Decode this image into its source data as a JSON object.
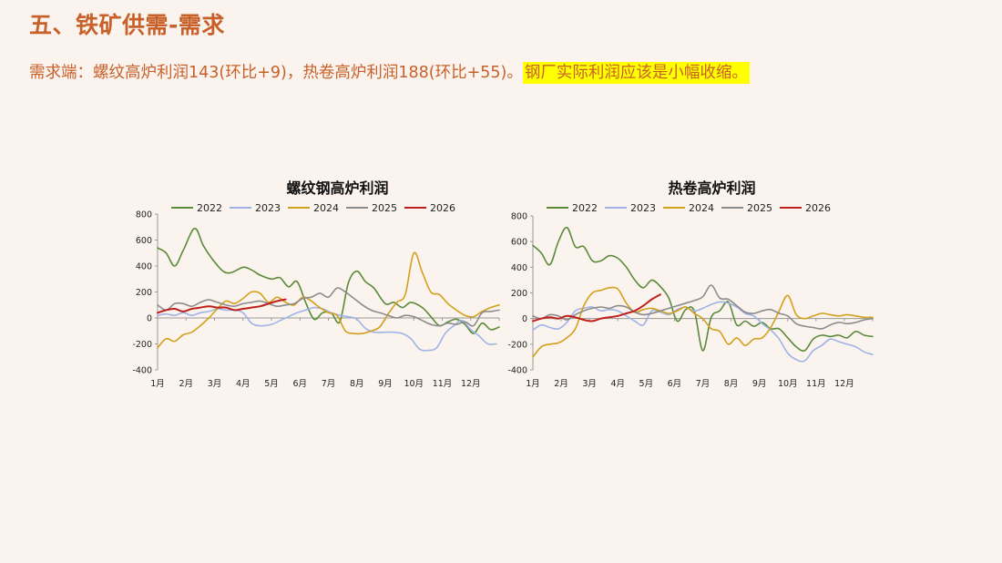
{
  "header": {
    "title": "五、铁矿供需-需求",
    "summary": "需求端：螺纹高炉利润143(环比+9)，热卷高炉利润188(环比+55)。",
    "highlight": "钢厂实际利润应该是小幅收缩。"
  },
  "colors": {
    "2022": "#5b8a3a",
    "2023": "#9fb3e6",
    "2024": "#d2a01c",
    "2025": "#8c8c8c",
    "2026": "#c0201c",
    "title_accent": "#c8602a",
    "highlight_bg": "#ffff00"
  },
  "chart_data": [
    {
      "type": "line",
      "title": "螺纹钢高炉利润",
      "x_tick_labels": [
        "1月",
        "2月",
        "3月",
        "4月",
        "5月",
        "6月",
        "7月",
        "8月",
        "9月",
        "10月",
        "11月",
        "12月"
      ],
      "xlim": [
        1,
        13
      ],
      "ylim": [
        -400,
        800
      ],
      "y_ticks": [
        -400,
        -200,
        0,
        200,
        400,
        600,
        800
      ],
      "grid": false,
      "legend_position": "top",
      "series": [
        {
          "name": "2022",
          "x": [
            1,
            1.3,
            1.6,
            1.9,
            2.3,
            2.6,
            2.9,
            3.3,
            3.6,
            4,
            4.3,
            4.6,
            5,
            5.3,
            5.6,
            5.9,
            6.2,
            6.5,
            6.8,
            7.1,
            7.4,
            7.7,
            8,
            8.3,
            8.6,
            9,
            9.3,
            9.6,
            9.9,
            10.3,
            10.6,
            10.9,
            11.2,
            11.5,
            11.8,
            12.1,
            12.4,
            12.7,
            13
          ],
          "y": [
            540,
            500,
            400,
            520,
            690,
            560,
            460,
            360,
            350,
            390,
            370,
            330,
            300,
            310,
            240,
            280,
            120,
            -10,
            40,
            40,
            -30,
            270,
            360,
            280,
            230,
            110,
            120,
            80,
            120,
            80,
            10,
            -60,
            -30,
            -10,
            -50,
            -120,
            -40,
            -90,
            -70
          ]
        },
        {
          "name": "2023",
          "x": [
            1,
            1.3,
            1.6,
            1.9,
            2.2,
            2.5,
            2.8,
            3.1,
            3.4,
            3.7,
            4,
            4.3,
            4.6,
            5,
            5.3,
            5.6,
            5.9,
            6.2,
            6.5,
            6.8,
            7.1,
            7.4,
            7.7,
            8,
            8.3,
            8.6,
            9,
            9.3,
            9.6,
            9.9,
            10.2,
            10.5,
            10.8,
            11.1,
            11.4,
            11.7,
            12,
            12.3,
            12.6,
            12.9
          ],
          "y": [
            20,
            30,
            20,
            40,
            20,
            40,
            50,
            70,
            60,
            60,
            40,
            -40,
            -60,
            -50,
            -20,
            10,
            40,
            60,
            80,
            70,
            40,
            20,
            10,
            -10,
            -80,
            -110,
            -110,
            -110,
            -120,
            -160,
            -240,
            -250,
            -230,
            -120,
            -60,
            -20,
            -90,
            -140,
            -200,
            -200
          ]
        },
        {
          "name": "2024",
          "x": [
            1,
            1.3,
            1.6,
            1.9,
            2.2,
            2.5,
            2.8,
            3.1,
            3.4,
            3.7,
            4,
            4.3,
            4.6,
            4.9,
            5.2,
            5.5,
            5.8,
            6.1,
            6.4,
            6.7,
            7,
            7.3,
            7.6,
            7.9,
            8.2,
            8.5,
            8.8,
            9.1,
            9.4,
            9.7,
            10,
            10.3,
            10.6,
            10.9,
            11.2,
            11.5,
            11.8,
            12.1,
            12.4,
            12.7,
            13
          ],
          "y": [
            -230,
            -160,
            -180,
            -130,
            -110,
            -60,
            0,
            70,
            130,
            110,
            150,
            200,
            190,
            120,
            160,
            120,
            100,
            160,
            130,
            80,
            40,
            20,
            -100,
            -120,
            -120,
            -100,
            -70,
            30,
            120,
            180,
            500,
            350,
            200,
            180,
            110,
            60,
            20,
            10,
            50,
            80,
            100
          ]
        },
        {
          "name": "2025",
          "x": [
            1,
            1.3,
            1.6,
            1.9,
            2.2,
            2.5,
            2.8,
            3.1,
            3.4,
            3.7,
            4,
            4.3,
            4.6,
            4.9,
            5.2,
            5.5,
            5.8,
            6.1,
            6.4,
            6.7,
            7,
            7.3,
            7.6,
            7.9,
            8.2,
            8.5,
            8.8,
            9.1,
            9.4,
            9.7,
            10,
            10.3,
            10.6,
            10.9,
            11.2,
            11.5,
            11.8,
            12.1,
            12.4,
            12.7,
            13
          ],
          "y": [
            100,
            60,
            110,
            110,
            90,
            120,
            140,
            120,
            100,
            90,
            110,
            120,
            130,
            110,
            90,
            100,
            110,
            150,
            160,
            190,
            160,
            230,
            200,
            150,
            100,
            60,
            40,
            20,
            0,
            20,
            10,
            -20,
            -50,
            -60,
            -40,
            -50,
            -30,
            -60,
            40,
            50,
            60
          ]
        },
        {
          "name": "2026",
          "x": [
            1,
            1.3,
            1.6,
            1.9,
            2.2,
            2.5,
            2.8,
            3.1,
            3.4,
            3.7,
            4,
            4.3,
            4.6,
            4.9,
            5.2,
            5.5
          ],
          "y": [
            40,
            60,
            70,
            50,
            70,
            80,
            90,
            80,
            80,
            60,
            70,
            80,
            90,
            110,
            130,
            143
          ]
        }
      ]
    },
    {
      "type": "line",
      "title": "热卷高炉利润",
      "x_tick_labels": [
        "1月",
        "2月",
        "3月",
        "4月",
        "5月",
        "6月",
        "7月",
        "8月",
        "9月",
        "10月",
        "11月",
        "12月"
      ],
      "xlim": [
        1,
        13
      ],
      "ylim": [
        -400,
        800
      ],
      "y_ticks": [
        -400,
        -200,
        0,
        200,
        400,
        600,
        800
      ],
      "grid": false,
      "legend_position": "top",
      "series": [
        {
          "name": "2022",
          "x": [
            1,
            1.3,
            1.6,
            1.9,
            2.2,
            2.5,
            2.8,
            3.1,
            3.4,
            3.7,
            4,
            4.3,
            4.6,
            4.9,
            5.2,
            5.5,
            5.8,
            6.1,
            6.4,
            6.7,
            7,
            7.3,
            7.6,
            7.9,
            8.2,
            8.5,
            8.8,
            9.1,
            9.4,
            9.7,
            10,
            10.3,
            10.6,
            10.9,
            11.2,
            11.5,
            11.8,
            12.1,
            12.4,
            12.7,
            13
          ],
          "y": [
            570,
            510,
            420,
            600,
            710,
            560,
            560,
            450,
            450,
            490,
            470,
            400,
            300,
            240,
            300,
            250,
            160,
            -20,
            70,
            60,
            -250,
            10,
            60,
            130,
            -50,
            -20,
            -60,
            -30,
            -80,
            -80,
            -150,
            -220,
            -250,
            -160,
            -130,
            -140,
            -130,
            -150,
            -100,
            -130,
            -140
          ]
        },
        {
          "name": "2023",
          "x": [
            1,
            1.3,
            1.6,
            1.9,
            2.2,
            2.5,
            2.8,
            3.1,
            3.4,
            3.7,
            4,
            4.3,
            4.6,
            4.9,
            5.2,
            5.5,
            5.8,
            6.1,
            6.4,
            6.7,
            7,
            7.3,
            7.6,
            7.9,
            8.2,
            8.5,
            8.8,
            9.1,
            9.4,
            9.7,
            10,
            10.3,
            10.6,
            10.9,
            11.2,
            11.5,
            11.8,
            12.1,
            12.4,
            12.7,
            13
          ],
          "y": [
            -90,
            -50,
            -70,
            -80,
            -30,
            60,
            80,
            90,
            60,
            70,
            60,
            20,
            -20,
            -50,
            60,
            50,
            30,
            70,
            90,
            60,
            80,
            110,
            130,
            120,
            90,
            40,
            20,
            -40,
            -90,
            -160,
            -270,
            -320,
            -330,
            -250,
            -210,
            -160,
            -180,
            -200,
            -220,
            -260,
            -280
          ]
        },
        {
          "name": "2024",
          "x": [
            1,
            1.3,
            1.6,
            1.9,
            2.2,
            2.5,
            2.8,
            3.1,
            3.4,
            3.7,
            4,
            4.3,
            4.6,
            4.9,
            5.2,
            5.5,
            5.8,
            6.1,
            6.4,
            6.7,
            7,
            7.3,
            7.6,
            7.9,
            8.2,
            8.5,
            8.8,
            9.1,
            9.4,
            9.7,
            10,
            10.3,
            10.6,
            10.9,
            11.2,
            11.5,
            11.8,
            12.1,
            12.4,
            12.7,
            13
          ],
          "y": [
            -300,
            -220,
            -200,
            -190,
            -150,
            -80,
            100,
            200,
            220,
            240,
            230,
            120,
            50,
            70,
            80,
            60,
            40,
            60,
            90,
            40,
            0,
            -80,
            -100,
            -200,
            -150,
            -210,
            -160,
            -150,
            -70,
            60,
            180,
            30,
            0,
            20,
            40,
            30,
            20,
            30,
            20,
            10,
            10
          ]
        },
        {
          "name": "2025",
          "x": [
            1,
            1.3,
            1.6,
            1.9,
            2.2,
            2.5,
            2.8,
            3.1,
            3.4,
            3.7,
            4,
            4.3,
            4.6,
            4.9,
            5.2,
            5.5,
            5.8,
            6.1,
            6.4,
            6.7,
            7,
            7.3,
            7.6,
            7.9,
            8.2,
            8.5,
            8.8,
            9.1,
            9.4,
            9.7,
            10,
            10.3,
            10.6,
            10.9,
            11.2,
            11.5,
            11.8,
            12.1,
            12.4,
            12.7,
            13
          ],
          "y": [
            20,
            0,
            30,
            20,
            -10,
            30,
            60,
            80,
            90,
            80,
            100,
            90,
            50,
            30,
            40,
            60,
            80,
            100,
            120,
            140,
            170,
            260,
            160,
            150,
            100,
            50,
            40,
            60,
            70,
            40,
            20,
            -40,
            -60,
            -70,
            -80,
            -50,
            -30,
            -40,
            -30,
            -10,
            0
          ]
        },
        {
          "name": "2026",
          "x": [
            1,
            1.3,
            1.6,
            1.9,
            2.2,
            2.5,
            2.8,
            3.1,
            3.4,
            3.7,
            4,
            4.3,
            4.6,
            4.9,
            5.2,
            5.5
          ],
          "y": [
            -20,
            0,
            10,
            0,
            20,
            10,
            -10,
            -20,
            0,
            10,
            20,
            40,
            60,
            100,
            150,
            188
          ]
        }
      ]
    }
  ]
}
